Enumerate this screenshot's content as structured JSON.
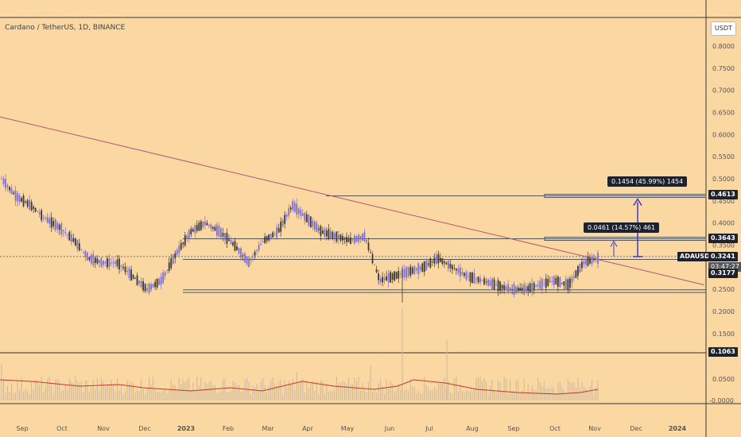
{
  "title": "Cardano / TetherUS, 1D, BINANCE",
  "currency": "USDT",
  "symbol_label": "ADAUSDT",
  "countdown": "03:47:27",
  "annotations": {
    "upper": "0.1454 (45.99%) 1454",
    "lower": "0.0461 (14.57%) 461"
  },
  "badges": {
    "r1": "0.4613",
    "r2": "0.3643",
    "last": "0.3241",
    "s1": "0.3177",
    "s2": "0.1063"
  },
  "chart_data": {
    "type": "candlestick",
    "title": "Cardano / TetherUS, 1D, BINANCE",
    "y_axis_label": "USDT",
    "y_ticks": [
      "0.8000",
      "0.7500",
      "0.7000",
      "0.6500",
      "0.6000",
      "0.5500",
      "0.5000",
      "0.4500",
      "0.4000",
      "0.3500",
      "0.3000",
      "0.2500",
      "0.2000",
      "0.1500",
      "0.0500",
      "-0.0000"
    ],
    "x_ticks": [
      "Sep",
      "Oct",
      "Nov",
      "Dec",
      "2023",
      "Feb",
      "Mar",
      "Apr",
      "May",
      "Jun",
      "Jul",
      "Aug",
      "Sep",
      "Oct",
      "Nov",
      "Dec",
      "2024"
    ],
    "price_path": [
      [
        "Sep",
        0.5
      ],
      [
        "Sep",
        0.46
      ],
      [
        "Oct",
        0.44
      ],
      [
        "Oct",
        0.41
      ],
      [
        "Oct",
        0.39
      ],
      [
        "Nov",
        0.36
      ],
      [
        "Nov",
        0.32
      ],
      [
        "Nov",
        0.31
      ],
      [
        "Dec",
        0.31
      ],
      [
        "Dec",
        0.28
      ],
      [
        "Dec",
        0.25
      ],
      [
        "2023",
        0.27
      ],
      [
        "2023",
        0.33
      ],
      [
        "Feb",
        0.38
      ],
      [
        "Feb",
        0.4
      ],
      [
        "Feb",
        0.38
      ],
      [
        "Mar",
        0.35
      ],
      [
        "Mar",
        0.31
      ],
      [
        "Mar",
        0.36
      ],
      [
        "Apr",
        0.38
      ],
      [
        "Apr",
        0.44
      ],
      [
        "Apr",
        0.41
      ],
      [
        "May",
        0.38
      ],
      [
        "May",
        0.37
      ],
      [
        "May",
        0.36
      ],
      [
        "Jun",
        0.37
      ],
      [
        "Jun",
        0.27
      ],
      [
        "Jun",
        0.28
      ],
      [
        "Jul",
        0.29
      ],
      [
        "Jul",
        0.3
      ],
      [
        "Jul",
        0.32
      ],
      [
        "Aug",
        0.3
      ],
      [
        "Aug",
        0.28
      ],
      [
        "Aug",
        0.27
      ],
      [
        "Sep",
        0.26
      ],
      [
        "Sep",
        0.25
      ],
      [
        "Sep",
        0.25
      ],
      [
        "Oct",
        0.26
      ],
      [
        "Oct",
        0.27
      ],
      [
        "Oct",
        0.26
      ],
      [
        "Nov",
        0.31
      ],
      [
        "Nov",
        0.32
      ]
    ],
    "horizontal_levels": [
      0.4613,
      0.3643,
      0.3177,
      0.243,
      0.1063
    ],
    "trendline": {
      "from_value": 0.64,
      "to_value": 0.26
    },
    "measurements": [
      {
        "label": "0.1454 (45.99%) 1454"
      },
      {
        "label": "0.0461 (14.57%) 461"
      }
    ],
    "last_price": 0.3241,
    "volume_ma": "red line"
  }
}
